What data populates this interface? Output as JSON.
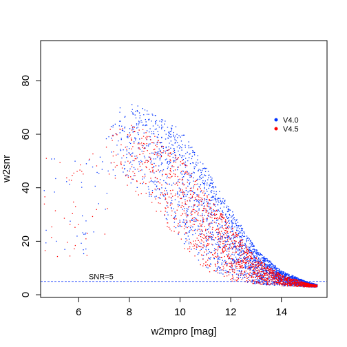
{
  "chart_data": {
    "type": "scatter",
    "xlabel": "w2mpro [mag]",
    "ylabel": "w2snr",
    "xlim": [
      4.5,
      15.8
    ],
    "ylim": [
      -1,
      95
    ],
    "x_ticks": [
      6,
      8,
      10,
      12,
      14
    ],
    "y_ticks": [
      0,
      20,
      40,
      60,
      80
    ],
    "x_tick_labels": [
      "6",
      "8",
      "10",
      "12",
      "14"
    ],
    "y_tick_labels": [
      "0",
      "20",
      "40",
      "60",
      "80"
    ],
    "legend_position": "right",
    "threshold_line": {
      "y": 5,
      "label": "SNR=5",
      "color": "#3355ff",
      "style": "dashed"
    },
    "series": [
      {
        "name": "V4.0",
        "color": "#0033ff",
        "envelope": [
          {
            "x": 7.0,
            "lo": 45,
            "hi": 70
          },
          {
            "x": 8.0,
            "lo": 42,
            "hi": 72
          },
          {
            "x": 9.0,
            "lo": 35,
            "hi": 68
          },
          {
            "x": 10.0,
            "lo": 20,
            "hi": 62
          },
          {
            "x": 11.0,
            "lo": 10,
            "hi": 48
          },
          {
            "x": 12.0,
            "lo": 6,
            "hi": 32
          },
          {
            "x": 13.0,
            "lo": 4,
            "hi": 17
          },
          {
            "x": 14.0,
            "lo": 3.5,
            "hi": 9
          },
          {
            "x": 15.0,
            "lo": 3,
            "hi": 5
          },
          {
            "x": 15.4,
            "lo": 3,
            "hi": 4
          }
        ]
      },
      {
        "name": "V4.5",
        "color": "#ff0000",
        "envelope": [
          {
            "x": 7.0,
            "lo": 42,
            "hi": 62
          },
          {
            "x": 8.0,
            "lo": 40,
            "hi": 64
          },
          {
            "x": 9.0,
            "lo": 32,
            "hi": 60
          },
          {
            "x": 10.0,
            "lo": 18,
            "hi": 52
          },
          {
            "x": 11.0,
            "lo": 9,
            "hi": 38
          },
          {
            "x": 12.0,
            "lo": 5,
            "hi": 26
          },
          {
            "x": 13.0,
            "lo": 4,
            "hi": 14
          },
          {
            "x": 14.0,
            "lo": 3.5,
            "hi": 7.5
          },
          {
            "x": 15.0,
            "lo": 3,
            "hi": 4.5
          },
          {
            "x": 15.4,
            "lo": 3,
            "hi": 3.8
          }
        ]
      }
    ]
  }
}
